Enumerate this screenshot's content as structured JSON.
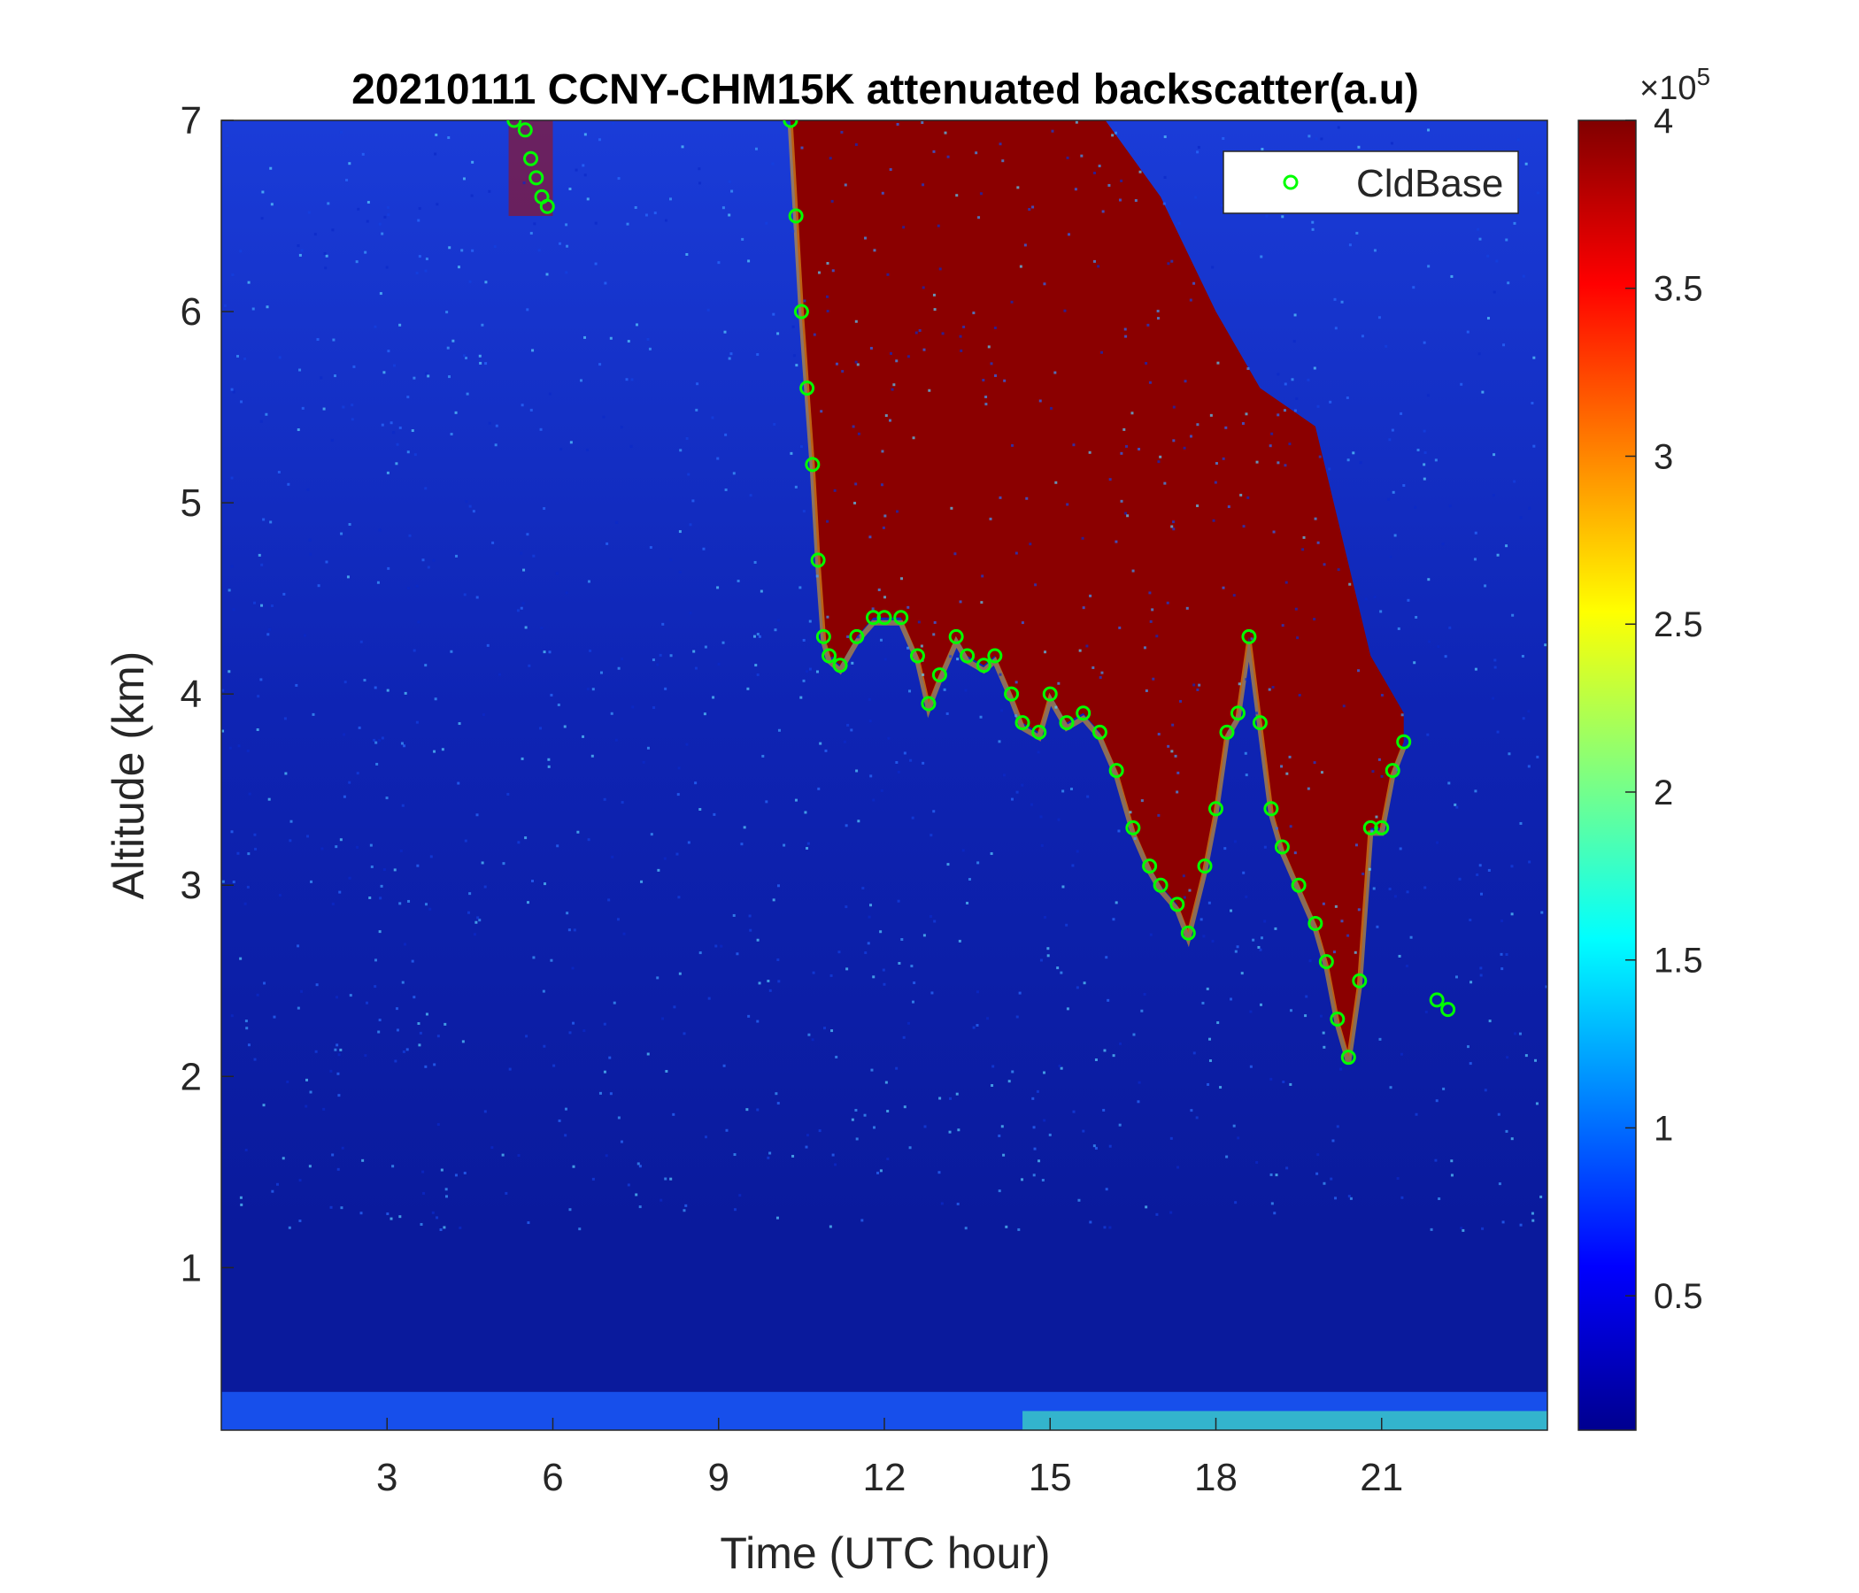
{
  "chart_data": {
    "type": "heatmap",
    "title": "20210111 CCNY-CHM15K attenuated backscatter(a.u)",
    "xlabel": "Time (UTC hour)",
    "ylabel": "Altitude (km)",
    "xlim": [
      0,
      24
    ],
    "ylim": [
      0.15,
      7
    ],
    "x_ticks": [
      "3",
      "6",
      "9",
      "12",
      "15",
      "18",
      "21"
    ],
    "y_ticks": [
      "1",
      "2",
      "3",
      "4",
      "5",
      "6",
      "7"
    ],
    "colorbar": {
      "colormap": "jet",
      "range": [
        0.1,
        4
      ],
      "ticks": [
        "0.5",
        "1",
        "1.5",
        "2",
        "2.5",
        "3",
        "3.5",
        "4"
      ],
      "exponent_label": "×10",
      "exponent": "5"
    },
    "legend": {
      "placement": "top-right",
      "entries": [
        "CldBase"
      ]
    },
    "series": [
      {
        "name": "CldBase",
        "marker": "circle",
        "color": "#00ff00",
        "x": [
          5.3,
          5.5,
          5.6,
          5.7,
          5.8,
          5.9,
          10.3,
          10.4,
          10.5,
          10.6,
          10.7,
          10.8,
          10.9,
          11.0,
          11.2,
          11.5,
          11.8,
          12.0,
          12.3,
          12.6,
          12.8,
          13.0,
          13.3,
          13.5,
          13.8,
          14.0,
          14.3,
          14.5,
          14.8,
          15.0,
          15.3,
          15.6,
          15.9,
          16.2,
          16.5,
          16.8,
          17.0,
          17.3,
          17.5,
          17.8,
          18.0,
          18.2,
          18.4,
          18.6,
          18.8,
          19.0,
          19.2,
          19.5,
          19.8,
          20.0,
          20.2,
          20.4,
          20.6,
          20.8,
          21.0,
          21.2,
          21.4,
          22.0,
          22.2
        ],
        "y": [
          7.0,
          6.95,
          6.8,
          6.7,
          6.6,
          6.55,
          7.0,
          6.5,
          6.0,
          5.6,
          5.2,
          4.7,
          4.3,
          4.2,
          4.15,
          4.3,
          4.4,
          4.4,
          4.4,
          4.2,
          3.95,
          4.1,
          4.3,
          4.2,
          4.15,
          4.2,
          4.0,
          3.85,
          3.8,
          4.0,
          3.85,
          3.9,
          3.8,
          3.6,
          3.3,
          3.1,
          3.0,
          2.9,
          2.75,
          3.1,
          3.4,
          3.8,
          3.9,
          4.3,
          3.85,
          3.4,
          3.2,
          3.0,
          2.8,
          2.6,
          2.3,
          2.1,
          2.5,
          3.3,
          3.3,
          3.6,
          3.75,
          2.4,
          2.35
        ]
      }
    ]
  }
}
